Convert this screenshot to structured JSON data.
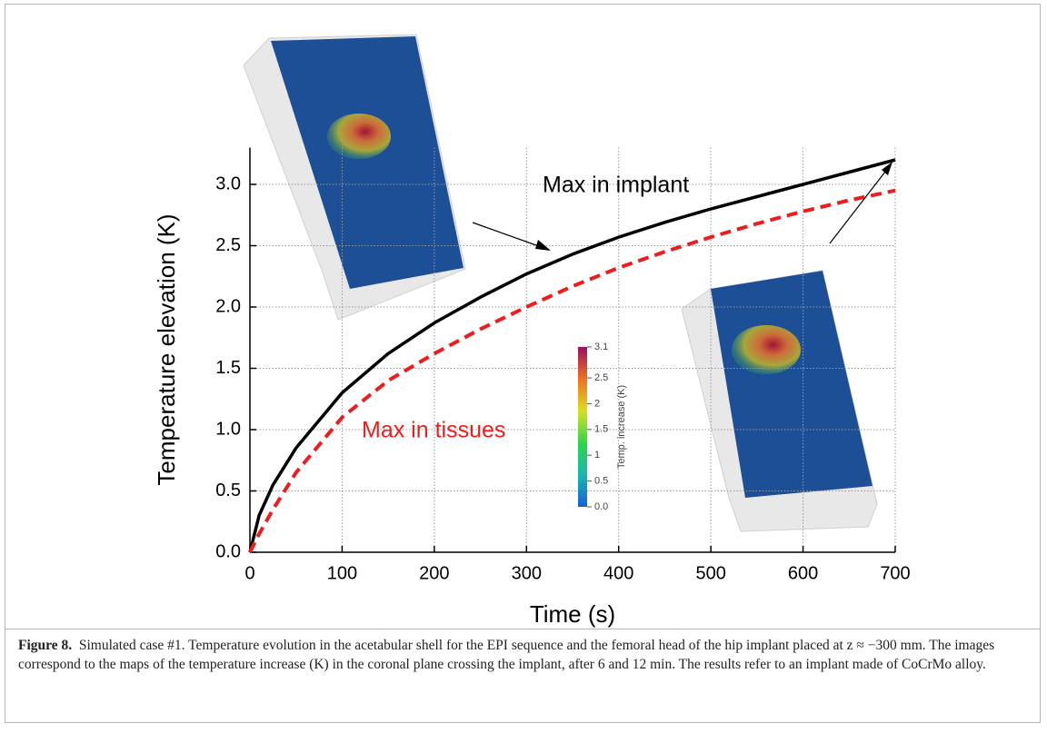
{
  "chart_data": {
    "type": "line",
    "x_label": "Time (s)",
    "y_label": "Temperature elevation (K)",
    "x": [
      0,
      10,
      25,
      50,
      100,
      150,
      200,
      250,
      300,
      350,
      400,
      450,
      500,
      550,
      600,
      650,
      700
    ],
    "series": [
      {
        "name": "Max in implant",
        "color": "#000000",
        "dash": false,
        "values": [
          0,
          0.3,
          0.55,
          0.85,
          1.3,
          1.62,
          1.87,
          2.08,
          2.27,
          2.43,
          2.57,
          2.69,
          2.8,
          2.9,
          3.0,
          3.1,
          3.2
        ]
      },
      {
        "name": "Max in tissues",
        "color": "#ee1c1c",
        "dash": true,
        "values": [
          0,
          0.15,
          0.35,
          0.65,
          1.1,
          1.4,
          1.62,
          1.82,
          2.0,
          2.17,
          2.32,
          2.45,
          2.57,
          2.68,
          2.78,
          2.87,
          2.95
        ]
      }
    ],
    "xlim": [
      0,
      700
    ],
    "xticks": [
      0,
      100,
      200,
      300,
      400,
      500,
      600,
      700
    ],
    "ylim": [
      0,
      3.3
    ],
    "yticks": [
      {
        "value": 0,
        "label": "0.0"
      },
      {
        "value": 0.5,
        "label": "0.5"
      },
      {
        "value": 1,
        "label": "1.0"
      },
      {
        "value": 1.5,
        "label": "1.5"
      },
      {
        "value": 2,
        "label": "2.0"
      },
      {
        "value": 2.5,
        "label": "2.5"
      },
      {
        "value": 3,
        "label": "3.0"
      }
    ],
    "grid": true,
    "colorbar": {
      "label": "Temp. increase (K)",
      "lim": [
        0,
        3.1
      ],
      "ticks": [
        {
          "value": 0,
          "label": "0.0"
        },
        0.5,
        1,
        1.5,
        2,
        2.5,
        3.1
      ]
    }
  },
  "caption": {
    "label": "Figure 8.",
    "text": "Simulated case #1. Temperature evolution in the acetabular shell for the EPI sequence and the femoral head of the hip implant placed at z ≈ −300 mm. The images correspond to the maps of the temperature increase (K) in the coronal plane crossing the implant, after 6 and 12 min. The results refer to an implant made of CoCrMo alloy."
  }
}
